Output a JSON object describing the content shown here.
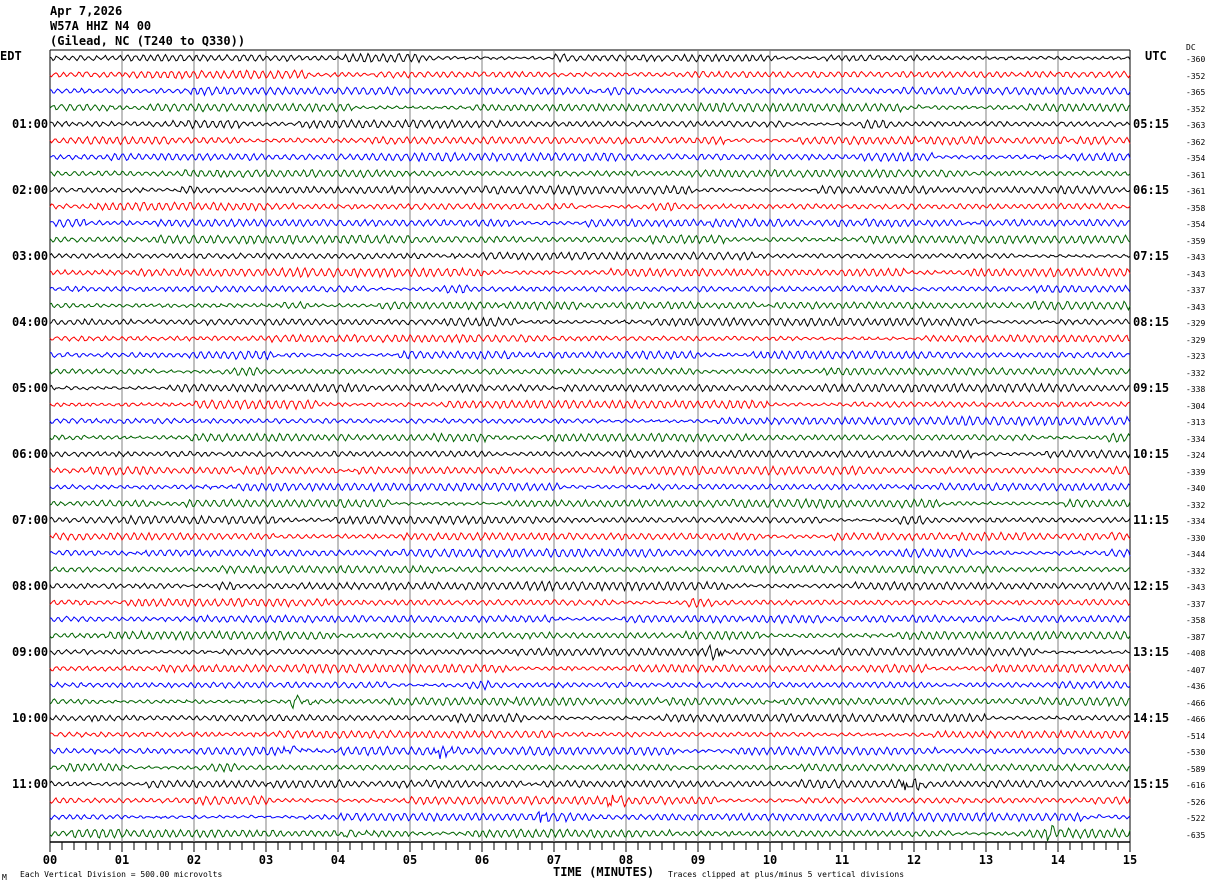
{
  "header": {
    "date": "Apr 7,2026",
    "station": "W57A HHZ N4 00",
    "location": "(Gilead, NC (T240 to Q330))"
  },
  "chart_data": {
    "type": "line",
    "subtype": "helicorder",
    "xlabel": "TIME (MINUTES)",
    "xlim": [
      0,
      15
    ],
    "x_ticks": [
      "00",
      "01",
      "02",
      "03",
      "04",
      "05",
      "06",
      "07",
      "08",
      "09",
      "10",
      "11",
      "12",
      "13",
      "14",
      "15"
    ],
    "left_axis_title": "EDT",
    "right_axis_title": "UTC",
    "dc_title": "DC",
    "left_time_labels": [
      "01:00",
      "02:00",
      "03:00",
      "04:00",
      "05:00",
      "06:00",
      "07:00",
      "08:00",
      "09:00",
      "10:00",
      "11:00"
    ],
    "right_time_labels": [
      "05:15",
      "06:15",
      "07:15",
      "08:15",
      "09:15",
      "10:15",
      "11:15",
      "12:15",
      "13:15",
      "14:15",
      "15:15"
    ],
    "trace_colors": [
      "#000000",
      "#ff0000",
      "#0000ff",
      "#006400"
    ],
    "trace_minutes_per_line": 15,
    "dc_offsets": [
      "-360",
      "-352",
      "-365",
      "-352",
      "-363",
      "-362",
      "-354",
      "-361",
      "-361",
      "-358",
      "-354",
      "-359",
      "-343",
      "-343",
      "-337",
      "-343",
      "-329",
      "-329",
      "-323",
      "-332",
      "-338",
      "-304",
      "-313",
      "-334",
      "-324",
      "-339",
      "-340",
      "-332",
      "-334",
      "-330",
      "-344",
      "-332",
      "-343",
      "-337",
      "-358",
      "-387",
      "-408",
      "-407",
      "-436",
      "-466",
      "-466",
      "-514",
      "-530",
      "-589",
      "-616",
      "-526",
      "-522",
      "-635"
    ],
    "events": [
      {
        "trace": 36,
        "minute": 9.2
      },
      {
        "trace": 39,
        "minute": 3.4
      },
      {
        "trace": 42,
        "minute": 3.3
      },
      {
        "trace": 42,
        "minute": 5.4
      },
      {
        "trace": 44,
        "minute": 11.9
      },
      {
        "trace": 45,
        "minute": 7.8
      },
      {
        "trace": 46,
        "minute": 6.8
      },
      {
        "trace": 47,
        "minute": 4.1
      },
      {
        "trace": 47,
        "minute": 13.9
      }
    ]
  },
  "footer": {
    "scale_note": "Each Vertical Division =  500.00 microvolts",
    "clip_note": "Traces clipped at plus/minus 5 vertical divisions",
    "corner_mark": "M"
  }
}
